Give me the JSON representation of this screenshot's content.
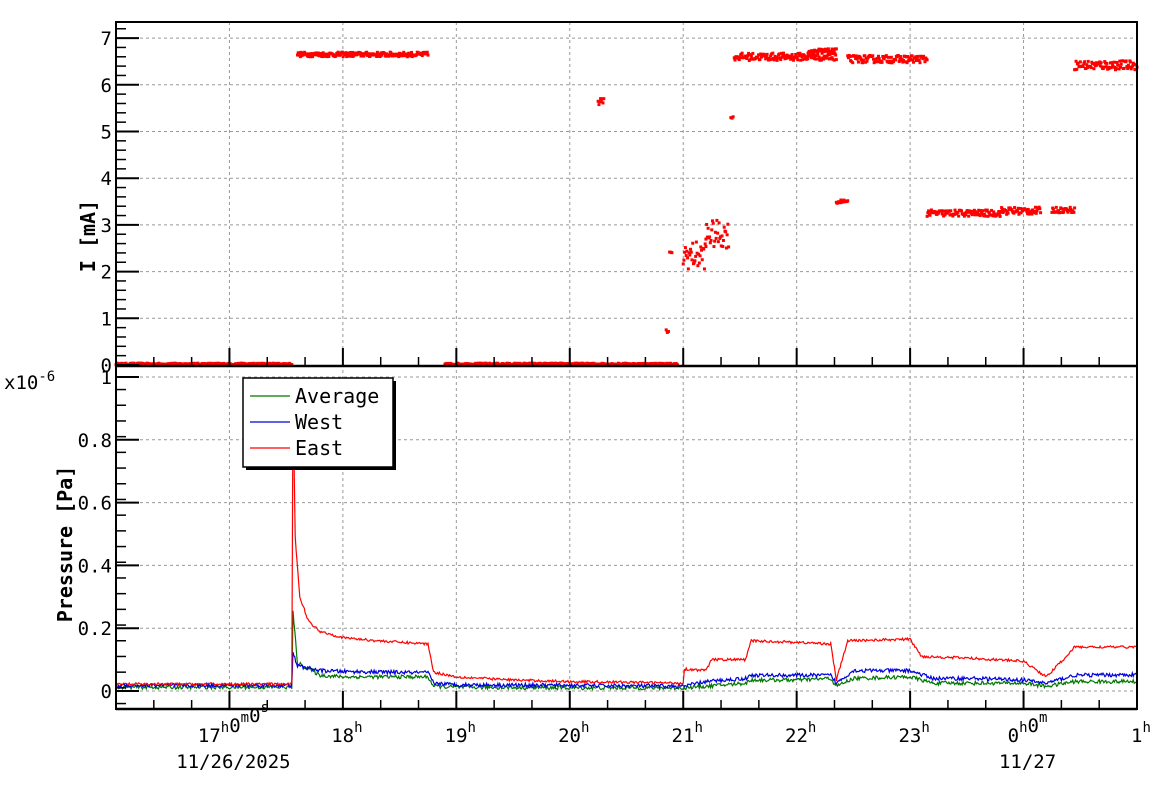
{
  "chart_data": [
    {
      "type": "scatter",
      "panel": "top",
      "title": "",
      "ylabel": "I [mA]",
      "xlabel": "",
      "ylim": [
        0,
        7.3
      ],
      "yticks": [
        0,
        1,
        2,
        3,
        4,
        5,
        6,
        7
      ],
      "xlim_hours_from_16h": [
        0,
        9
      ],
      "grid": true,
      "marker_color": "#ff0000",
      "series": [
        {
          "name": "I",
          "segments": [
            {
              "t_start": 0.0,
              "t_end": 1.55,
              "value": 0.02,
              "spread": 0.02
            },
            {
              "t_start": 1.6,
              "t_end": 2.75,
              "value": 6.65,
              "spread": 0.05
            },
            {
              "t_start": 2.9,
              "t_end": 4.95,
              "value": 0.02,
              "spread": 0.02
            },
            {
              "t_start": 4.25,
              "t_end": 4.3,
              "value": 5.65,
              "spread": 0.08
            },
            {
              "t_start": 4.85,
              "t_end": 4.87,
              "value": 0.72,
              "spread": 0.04
            },
            {
              "t_start": 4.88,
              "t_end": 4.9,
              "value": 2.4,
              "spread": 0.02
            },
            {
              "t_start": 5.0,
              "t_end": 5.2,
              "value": 2.35,
              "spread": 0.3
            },
            {
              "t_start": 5.2,
              "t_end": 5.4,
              "value": 2.8,
              "spread": 0.3
            },
            {
              "t_start": 5.42,
              "t_end": 5.44,
              "value": 5.3,
              "spread": 0.02
            },
            {
              "t_start": 5.45,
              "t_end": 6.35,
              "value": 6.6,
              "spread": 0.08
            },
            {
              "t_start": 6.1,
              "t_end": 6.35,
              "value": 6.72,
              "spread": 0.05
            },
            {
              "t_start": 6.35,
              "t_end": 6.45,
              "value": 3.5,
              "spread": 0.04
            },
            {
              "t_start": 6.45,
              "t_end": 7.15,
              "value": 6.55,
              "spread": 0.08
            },
            {
              "t_start": 7.15,
              "t_end": 7.8,
              "value": 3.25,
              "spread": 0.07
            },
            {
              "t_start": 7.8,
              "t_end": 8.15,
              "value": 3.3,
              "spread": 0.08
            },
            {
              "t_start": 8.25,
              "t_end": 8.45,
              "value": 3.32,
              "spread": 0.06
            },
            {
              "t_start": 8.45,
              "t_end": 9.0,
              "value": 6.42,
              "spread": 0.1
            }
          ]
        }
      ]
    },
    {
      "type": "line",
      "panel": "bottom",
      "title": "",
      "ylabel": "Pressure [Pa]",
      "y_multiplier_label": "x10",
      "y_multiplier_exp": "-6",
      "ylim": [
        -0.055,
        1.0
      ],
      "yticks": [
        0,
        0.2,
        0.4,
        0.6,
        0.8,
        1
      ],
      "ytick_labels": [
        "0",
        "0.2",
        "0.4",
        "0.6",
        "0.8",
        "1"
      ],
      "xlim_hours_from_16h": [
        0,
        9
      ],
      "grid": true,
      "legend_position": "upper-left",
      "series": [
        {
          "name": "Average",
          "color": "#007700",
          "points": [
            [
              0,
              0.012
            ],
            [
              1.55,
              0.012
            ],
            [
              1.56,
              0.25
            ],
            [
              1.6,
              0.09
            ],
            [
              1.8,
              0.05
            ],
            [
              2.0,
              0.045
            ],
            [
              2.75,
              0.045
            ],
            [
              2.8,
              0.015
            ],
            [
              3.0,
              0.012
            ],
            [
              4.0,
              0.01
            ],
            [
              5.0,
              0.01
            ],
            [
              5.2,
              0.015
            ],
            [
              5.55,
              0.025
            ],
            [
              5.6,
              0.035
            ],
            [
              6.0,
              0.035
            ],
            [
              6.3,
              0.04
            ],
            [
              6.35,
              0.015
            ],
            [
              6.5,
              0.04
            ],
            [
              7.0,
              0.045
            ],
            [
              7.2,
              0.025
            ],
            [
              7.6,
              0.025
            ],
            [
              8.0,
              0.025
            ],
            [
              8.2,
              0.015
            ],
            [
              8.45,
              0.03
            ],
            [
              9.0,
              0.03
            ]
          ]
        },
        {
          "name": "West",
          "color": "#0000dd",
          "points": [
            [
              0,
              0.018
            ],
            [
              1.55,
              0.018
            ],
            [
              1.56,
              0.12
            ],
            [
              1.6,
              0.08
            ],
            [
              1.8,
              0.065
            ],
            [
              2.0,
              0.062
            ],
            [
              2.75,
              0.058
            ],
            [
              2.8,
              0.025
            ],
            [
              3.0,
              0.02
            ],
            [
              4.0,
              0.018
            ],
            [
              5.0,
              0.015
            ],
            [
              5.2,
              0.03
            ],
            [
              5.55,
              0.04
            ],
            [
              5.6,
              0.05
            ],
            [
              6.0,
              0.05
            ],
            [
              6.3,
              0.05
            ],
            [
              6.35,
              0.025
            ],
            [
              6.5,
              0.065
            ],
            [
              7.0,
              0.065
            ],
            [
              7.2,
              0.04
            ],
            [
              7.6,
              0.04
            ],
            [
              8.0,
              0.035
            ],
            [
              8.2,
              0.025
            ],
            [
              8.45,
              0.05
            ],
            [
              9.0,
              0.052
            ]
          ]
        },
        {
          "name": "East",
          "color": "#ff0000",
          "points": [
            [
              0,
              0.022
            ],
            [
              1.55,
              0.022
            ],
            [
              1.56,
              0.95
            ],
            [
              1.58,
              0.49
            ],
            [
              1.62,
              0.3
            ],
            [
              1.7,
              0.22
            ],
            [
              1.8,
              0.19
            ],
            [
              2.0,
              0.17
            ],
            [
              2.3,
              0.16
            ],
            [
              2.75,
              0.15
            ],
            [
              2.8,
              0.06
            ],
            [
              3.0,
              0.045
            ],
            [
              3.5,
              0.035
            ],
            [
              4.0,
              0.03
            ],
            [
              4.5,
              0.028
            ],
            [
              5.0,
              0.025
            ],
            [
              5.01,
              0.07
            ],
            [
              5.2,
              0.065
            ],
            [
              5.25,
              0.1
            ],
            [
              5.55,
              0.1
            ],
            [
              5.6,
              0.16
            ],
            [
              6.0,
              0.155
            ],
            [
              6.3,
              0.15
            ],
            [
              6.35,
              0.035
            ],
            [
              6.45,
              0.16
            ],
            [
              7.0,
              0.165
            ],
            [
              7.1,
              0.11
            ],
            [
              7.5,
              0.105
            ],
            [
              8.0,
              0.095
            ],
            [
              8.2,
              0.045
            ],
            [
              8.35,
              0.1
            ],
            [
              8.45,
              0.14
            ],
            [
              9.0,
              0.14
            ]
          ]
        }
      ]
    }
  ],
  "x_axis": {
    "major_ticks": [
      {
        "t": 1,
        "label": "17",
        "sup": "h",
        "extra": "0",
        "extra_sup": "m",
        "extra2": "0",
        "extra2_sup": "s",
        "date": "11/26/2025"
      },
      {
        "t": 2,
        "label": "18",
        "sup": "h"
      },
      {
        "t": 3,
        "label": "19",
        "sup": "h"
      },
      {
        "t": 4,
        "label": "20",
        "sup": "h"
      },
      {
        "t": 5,
        "label": "21",
        "sup": "h"
      },
      {
        "t": 6,
        "label": "22",
        "sup": "h"
      },
      {
        "t": 7,
        "label": "23",
        "sup": "h"
      },
      {
        "t": 8,
        "label": "0",
        "sup": "h",
        "extra": "0",
        "extra_sup": "m",
        "date": "11/27"
      },
      {
        "t": 9,
        "label": "1",
        "sup": "h"
      }
    ]
  },
  "legend": {
    "entries": [
      {
        "label": "Average",
        "color": "#007700"
      },
      {
        "label": "West",
        "color": "#0000dd"
      },
      {
        "label": "East",
        "color": "#ff0000"
      }
    ]
  }
}
